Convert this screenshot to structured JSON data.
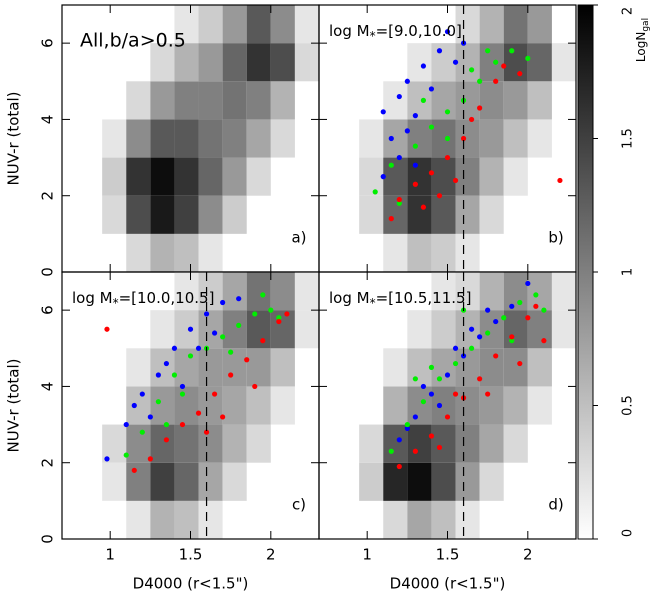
{
  "chart_data": [
    {
      "type": "scatter",
      "annotation": "All,b/a>0.5",
      "panel_label": "a)",
      "ylabel": "NUV-r (total)",
      "xlim": [
        0.7,
        2.3
      ],
      "ylim": [
        0,
        7
      ],
      "xticks": [
        1,
        1.5,
        2
      ],
      "yticks": [
        0,
        2,
        4,
        6
      ],
      "density": {
        "x_edges": [
          0.95,
          1.1,
          1.25,
          1.4,
          1.55,
          1.7,
          1.85,
          2.0,
          2.15,
          2.3
        ],
        "y_edges": [
          0,
          1,
          2,
          3,
          4,
          5,
          6,
          7
        ],
        "values": [
          [
            null,
            0.3,
            0.6,
            0.5,
            0.2,
            null,
            null,
            null,
            null
          ],
          [
            0.3,
            1.4,
            1.8,
            1.5,
            0.9,
            0.4,
            null,
            null,
            null
          ],
          [
            0.4,
            1.6,
            1.9,
            1.6,
            1.2,
            0.8,
            0.3,
            null,
            null
          ],
          [
            0.2,
            0.9,
            1.3,
            1.3,
            1.1,
            1.0,
            0.7,
            0.3,
            null
          ],
          [
            null,
            0.3,
            0.8,
            1.0,
            1.0,
            1.1,
            1.0,
            0.6,
            null
          ],
          [
            null,
            null,
            0.3,
            0.6,
            0.8,
            1.2,
            1.6,
            1.4,
            0.3
          ],
          [
            null,
            null,
            null,
            0.2,
            0.4,
            0.8,
            1.3,
            0.9,
            0.2
          ]
        ]
      },
      "series": []
    },
    {
      "type": "scatter",
      "annotation": "log M",
      "annotation_sub": "*",
      "annotation_tail": "=[9.0,10.0]",
      "panel_label": "b)",
      "xlim": [
        0.7,
        2.3
      ],
      "ylim": [
        0,
        7
      ],
      "xticks": [
        1,
        1.5,
        2
      ],
      "yticks": [
        0,
        2,
        4,
        6
      ],
      "vline": 1.6,
      "density": {
        "x_edges": [
          0.95,
          1.1,
          1.25,
          1.4,
          1.55,
          1.7,
          1.85,
          2.0,
          2.15,
          2.3
        ],
        "y_edges": [
          0,
          1,
          2,
          3,
          4,
          5,
          6,
          7
        ],
        "values": [
          [
            null,
            0.2,
            0.5,
            0.4,
            0.2,
            null,
            null,
            null,
            null
          ],
          [
            0.3,
            1.2,
            1.6,
            1.3,
            0.7,
            0.3,
            null,
            null,
            null
          ],
          [
            0.3,
            1.3,
            1.6,
            1.4,
            1.0,
            0.6,
            0.2,
            null,
            null
          ],
          [
            0.2,
            0.7,
            1.0,
            1.1,
            0.9,
            0.8,
            0.5,
            0.2,
            null
          ],
          [
            null,
            0.2,
            0.5,
            0.7,
            0.8,
            0.9,
            0.8,
            0.5,
            null
          ],
          [
            null,
            null,
            0.2,
            0.4,
            0.6,
            1.0,
            1.4,
            1.2,
            0.2
          ],
          [
            null,
            null,
            null,
            null,
            0.3,
            0.6,
            1.1,
            0.8,
            null
          ]
        ]
      },
      "series": [
        {
          "color": "#0000ff",
          "points": [
            [
              1.1,
              4.2
            ],
            [
              1.15,
              3.5
            ],
            [
              1.2,
              4.6
            ],
            [
              1.25,
              5.0
            ],
            [
              1.3,
              4.1
            ],
            [
              1.2,
              3.0
            ],
            [
              1.35,
              5.4
            ],
            [
              1.4,
              4.8
            ],
            [
              1.45,
              5.8
            ],
            [
              1.5,
              6.3
            ],
            [
              1.1,
              2.5
            ],
            [
              1.25,
              3.7
            ],
            [
              1.55,
              5.5
            ],
            [
              1.6,
              6.0
            ],
            [
              1.3,
              2.8
            ]
          ]
        },
        {
          "color": "#00ee00",
          "points": [
            [
              1.05,
              2.1
            ],
            [
              1.15,
              2.8
            ],
            [
              1.3,
              3.3
            ],
            [
              1.4,
              3.8
            ],
            [
              1.5,
              4.2
            ],
            [
              1.6,
              4.5
            ],
            [
              1.7,
              5.0
            ],
            [
              1.8,
              5.5
            ],
            [
              1.9,
              5.8
            ],
            [
              2.0,
              5.6
            ],
            [
              1.35,
              4.5
            ],
            [
              1.75,
              5.8
            ],
            [
              1.5,
              3.5
            ],
            [
              1.2,
              1.8
            ],
            [
              1.65,
              5.3
            ]
          ]
        },
        {
          "color": "#ff0000",
          "points": [
            [
              1.15,
              1.4
            ],
            [
              1.2,
              1.9
            ],
            [
              1.3,
              2.3
            ],
            [
              1.35,
              1.7
            ],
            [
              1.4,
              2.6
            ],
            [
              1.45,
              2.0
            ],
            [
              1.5,
              3.0
            ],
            [
              1.6,
              3.5
            ],
            [
              1.7,
              4.3
            ],
            [
              1.8,
              5.0
            ],
            [
              1.85,
              5.4
            ],
            [
              1.95,
              5.2
            ],
            [
              1.55,
              2.4
            ],
            [
              2.2,
              2.4
            ],
            [
              1.65,
              4.0
            ]
          ]
        }
      ]
    },
    {
      "type": "scatter",
      "annotation": "log M",
      "annotation_sub": "*",
      "annotation_tail": "=[10.0,10.5]",
      "panel_label": "c)",
      "xlabel": "D4000 (r<1.5\")",
      "ylabel": "NUV-r (total)",
      "xlim": [
        0.7,
        2.3
      ],
      "ylim": [
        0,
        7
      ],
      "xticks": [
        1,
        1.5,
        2
      ],
      "yticks": [
        0,
        2,
        4,
        6
      ],
      "vline": 1.6,
      "density": {
        "x_edges": [
          0.95,
          1.1,
          1.25,
          1.4,
          1.55,
          1.7,
          1.85,
          2.0,
          2.15,
          2.3
        ],
        "y_edges": [
          0,
          1,
          2,
          3,
          4,
          5,
          6,
          7
        ],
        "values": [
          [
            null,
            0.2,
            0.6,
            0.5,
            0.2,
            null,
            null,
            null,
            null
          ],
          [
            0.2,
            1.0,
            1.5,
            1.2,
            0.7,
            0.3,
            null,
            null,
            null
          ],
          [
            0.3,
            0.9,
            1.2,
            1.1,
            0.9,
            0.6,
            0.3,
            null,
            null
          ],
          [
            null,
            0.5,
            0.8,
            0.9,
            0.8,
            0.7,
            0.5,
            0.2,
            null
          ],
          [
            null,
            0.2,
            0.5,
            0.7,
            0.8,
            0.8,
            0.8,
            0.5,
            null
          ],
          [
            null,
            null,
            0.2,
            0.4,
            0.7,
            1.0,
            1.3,
            1.2,
            0.2
          ],
          [
            null,
            null,
            null,
            0.2,
            0.4,
            0.7,
            1.1,
            0.9,
            0.2
          ]
        ]
      },
      "series": [
        {
          "color": "#0000ff",
          "points": [
            [
              0.98,
              2.1
            ],
            [
              1.1,
              3.0
            ],
            [
              1.2,
              3.8
            ],
            [
              1.3,
              4.3
            ],
            [
              1.4,
              5.0
            ],
            [
              1.5,
              5.5
            ],
            [
              1.6,
              5.9
            ],
            [
              1.7,
              6.2
            ],
            [
              1.25,
              3.2
            ],
            [
              1.35,
              4.6
            ],
            [
              1.45,
              4.0
            ],
            [
              1.55,
              5.0
            ],
            [
              1.8,
              6.3
            ],
            [
              1.15,
              3.5
            ],
            [
              1.65,
              5.4
            ]
          ]
        },
        {
          "color": "#00ee00",
          "points": [
            [
              1.1,
              2.2
            ],
            [
              1.2,
              2.8
            ],
            [
              1.3,
              3.6
            ],
            [
              1.4,
              4.3
            ],
            [
              1.5,
              4.8
            ],
            [
              1.6,
              5.0
            ],
            [
              1.7,
              5.3
            ],
            [
              1.8,
              5.6
            ],
            [
              1.9,
              5.9
            ],
            [
              2.0,
              6.0
            ],
            [
              1.45,
              3.8
            ],
            [
              1.75,
              4.9
            ],
            [
              1.95,
              6.4
            ],
            [
              1.35,
              3.0
            ],
            [
              2.05,
              5.8
            ]
          ]
        },
        {
          "color": "#ff0000",
          "points": [
            [
              1.15,
              1.8
            ],
            [
              1.25,
              2.1
            ],
            [
              1.35,
              2.6
            ],
            [
              1.45,
              3.0
            ],
            [
              1.55,
              3.3
            ],
            [
              1.65,
              3.8
            ],
            [
              1.75,
              4.3
            ],
            [
              1.85,
              4.7
            ],
            [
              1.95,
              5.2
            ],
            [
              2.05,
              5.7
            ],
            [
              1.7,
              3.2
            ],
            [
              1.9,
              4.0
            ],
            [
              2.1,
              5.9
            ],
            [
              0.98,
              5.5
            ],
            [
              1.6,
              2.8
            ]
          ]
        }
      ]
    },
    {
      "type": "scatter",
      "annotation": "log M",
      "annotation_sub": "*",
      "annotation_tail": "=[10.5,11.5]",
      "panel_label": "d)",
      "xlabel": "D4000 (r<1.5\")",
      "xlim": [
        0.7,
        2.3
      ],
      "ylim": [
        0,
        7
      ],
      "xticks": [
        1,
        1.5,
        2
      ],
      "yticks": [
        0,
        2,
        4,
        6
      ],
      "vline": 1.6,
      "density": {
        "x_edges": [
          0.95,
          1.1,
          1.25,
          1.4,
          1.55,
          1.7,
          1.85,
          2.0,
          2.15,
          2.3
        ],
        "y_edges": [
          0,
          1,
          2,
          3,
          4,
          5,
          6,
          7
        ],
        "values": [
          [
            null,
            0.3,
            0.7,
            0.5,
            0.2,
            null,
            null,
            null,
            null
          ],
          [
            0.4,
            1.7,
            1.9,
            1.4,
            0.8,
            0.3,
            null,
            null,
            null
          ],
          [
            0.3,
            1.3,
            1.5,
            1.3,
            1.0,
            0.7,
            0.3,
            null,
            null
          ],
          [
            null,
            0.6,
            0.9,
            1.0,
            0.9,
            0.8,
            0.6,
            0.2,
            null
          ],
          [
            null,
            0.2,
            0.5,
            0.7,
            0.8,
            0.9,
            0.9,
            0.5,
            null
          ],
          [
            null,
            null,
            0.2,
            0.4,
            0.6,
            0.9,
            1.2,
            1.0,
            0.2
          ],
          [
            null,
            null,
            null,
            0.2,
            0.3,
            0.6,
            0.9,
            0.7,
            0.2
          ]
        ]
      },
      "series": [
        {
          "color": "#0000ff",
          "points": [
            [
              1.2,
              2.6
            ],
            [
              1.3,
              3.2
            ],
            [
              1.4,
              3.8
            ],
            [
              1.5,
              4.3
            ],
            [
              1.6,
              4.8
            ],
            [
              1.7,
              5.3
            ],
            [
              1.8,
              5.7
            ],
            [
              1.9,
              6.1
            ],
            [
              1.35,
              4.0
            ],
            [
              1.55,
              5.0
            ],
            [
              1.75,
              6.0
            ],
            [
              2.0,
              6.7
            ],
            [
              1.45,
              3.5
            ],
            [
              1.65,
              5.5
            ],
            [
              1.25,
              2.9
            ]
          ]
        },
        {
          "color": "#00ee00",
          "points": [
            [
              1.15,
              2.3
            ],
            [
              1.25,
              3.0
            ],
            [
              1.35,
              3.6
            ],
            [
              1.45,
              4.2
            ],
            [
              1.55,
              4.6
            ],
            [
              1.65,
              5.0
            ],
            [
              1.75,
              5.4
            ],
            [
              1.85,
              5.8
            ],
            [
              1.95,
              6.2
            ],
            [
              2.05,
              6.4
            ],
            [
              1.4,
              4.5
            ],
            [
              1.6,
              6.0
            ],
            [
              1.3,
              4.2
            ],
            [
              2.1,
              6.0
            ],
            [
              1.9,
              5.2
            ]
          ]
        },
        {
          "color": "#ff0000",
          "points": [
            [
              1.2,
              1.9
            ],
            [
              1.3,
              2.3
            ],
            [
              1.4,
              2.7
            ],
            [
              1.5,
              3.2
            ],
            [
              1.6,
              3.7
            ],
            [
              1.7,
              4.2
            ],
            [
              1.8,
              4.8
            ],
            [
              1.9,
              5.3
            ],
            [
              2.0,
              5.8
            ],
            [
              2.05,
              6.1
            ],
            [
              1.75,
              3.8
            ],
            [
              1.95,
              4.6
            ],
            [
              1.55,
              3.8
            ],
            [
              2.1,
              5.2
            ],
            [
              1.45,
              2.4
            ]
          ]
        }
      ]
    }
  ],
  "colorbar": {
    "label": "LogN",
    "label_sub": "gal",
    "lim": [
      0,
      2
    ],
    "ticks": [
      0,
      0.5,
      1,
      1.5,
      2
    ]
  }
}
